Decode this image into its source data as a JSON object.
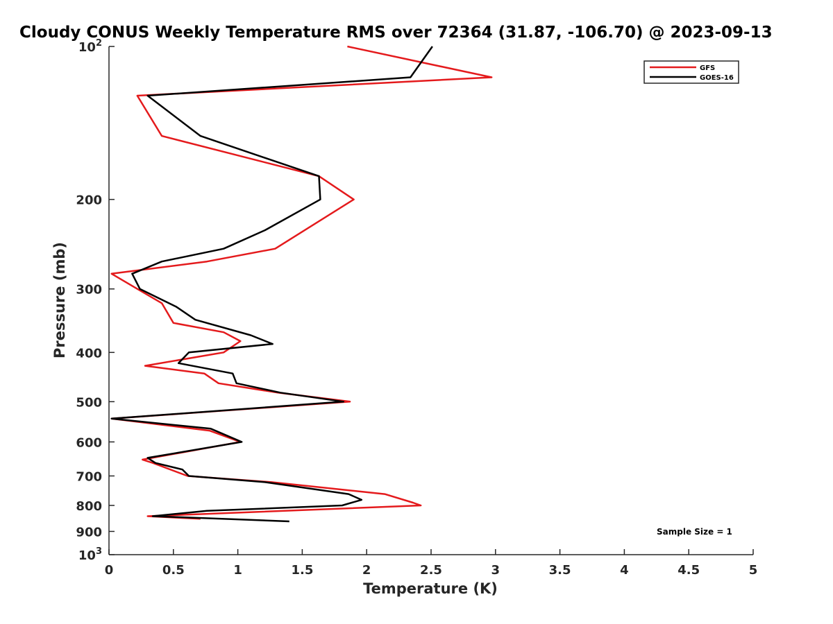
{
  "chart_data": {
    "type": "line",
    "title": "Cloudy CONUS Weekly Temperature RMS over 72364 (31.87, -106.70) @ 2023-09-13",
    "xlabel": "Temperature (K)",
    "ylabel": "Pressure (mb)",
    "xlim": [
      0,
      5
    ],
    "ylim": [
      100,
      1000
    ],
    "y_scale": "log",
    "y_reversed": true,
    "grid": false,
    "x_ticks": [
      {
        "value": 0,
        "label": "0"
      },
      {
        "value": 0.5,
        "label": "0.5"
      },
      {
        "value": 1,
        "label": "1"
      },
      {
        "value": 1.5,
        "label": "1.5"
      },
      {
        "value": 2,
        "label": "2"
      },
      {
        "value": 2.5,
        "label": "2.5"
      },
      {
        "value": 3,
        "label": "3"
      },
      {
        "value": 3.5,
        "label": "3.5"
      },
      {
        "value": 4,
        "label": "4"
      },
      {
        "value": 4.5,
        "label": "4.5"
      },
      {
        "value": 5,
        "label": "5"
      }
    ],
    "y_ticks": [
      {
        "value": 100,
        "label": "10",
        "sup": "2"
      },
      {
        "value": 200,
        "label": "200",
        "sup": ""
      },
      {
        "value": 300,
        "label": "300",
        "sup": ""
      },
      {
        "value": 400,
        "label": "400",
        "sup": ""
      },
      {
        "value": 500,
        "label": "500",
        "sup": ""
      },
      {
        "value": 600,
        "label": "600",
        "sup": ""
      },
      {
        "value": 700,
        "label": "700",
        "sup": ""
      },
      {
        "value": 800,
        "label": "800",
        "sup": ""
      },
      {
        "value": 900,
        "label": "900",
        "sup": ""
      },
      {
        "value": 1000,
        "label": "10",
        "sup": "3"
      }
    ],
    "legend_position": "top-right",
    "series": [
      {
        "name": "GFS",
        "color": "#e41a1c",
        "points": [
          [
            1.85,
            100
          ],
          [
            2.97,
            115
          ],
          [
            0.22,
            125
          ],
          [
            0.41,
            150
          ],
          [
            1.63,
            180
          ],
          [
            1.9,
            200
          ],
          [
            1.29,
            250
          ],
          [
            0.76,
            265
          ],
          [
            0.02,
            280
          ],
          [
            0.22,
            300
          ],
          [
            0.41,
            320
          ],
          [
            0.5,
            350
          ],
          [
            0.89,
            365
          ],
          [
            1.02,
            380
          ],
          [
            0.89,
            400
          ],
          [
            0.28,
            425
          ],
          [
            0.74,
            440
          ],
          [
            0.85,
            460
          ],
          [
            1.31,
            480
          ],
          [
            1.87,
            500
          ],
          [
            0.02,
            540
          ],
          [
            0.78,
            570
          ],
          [
            1.02,
            600
          ],
          [
            0.26,
            650
          ],
          [
            0.34,
            660
          ],
          [
            0.61,
            700
          ],
          [
            1.26,
            720
          ],
          [
            2.14,
            760
          ],
          [
            2.36,
            790
          ],
          [
            2.42,
            800
          ],
          [
            0.3,
            840
          ],
          [
            0.71,
            850
          ]
        ]
      },
      {
        "name": "GOES-16",
        "color": "#000000",
        "points": [
          [
            2.51,
            100
          ],
          [
            2.34,
            115
          ],
          [
            0.3,
            125
          ],
          [
            0.71,
            150
          ],
          [
            1.63,
            180
          ],
          [
            1.64,
            200
          ],
          [
            1.21,
            230
          ],
          [
            0.89,
            250
          ],
          [
            0.41,
            265
          ],
          [
            0.18,
            280
          ],
          [
            0.24,
            300
          ],
          [
            0.52,
            325
          ],
          [
            0.67,
            345
          ],
          [
            1.1,
            370
          ],
          [
            1.27,
            385
          ],
          [
            0.62,
            400
          ],
          [
            0.54,
            420
          ],
          [
            0.96,
            440
          ],
          [
            0.99,
            460
          ],
          [
            1.33,
            480
          ],
          [
            1.82,
            500
          ],
          [
            0.02,
            540
          ],
          [
            0.79,
            565
          ],
          [
            1.03,
            600
          ],
          [
            0.3,
            645
          ],
          [
            0.36,
            660
          ],
          [
            0.57,
            680
          ],
          [
            0.62,
            700
          ],
          [
            1.21,
            720
          ],
          [
            1.86,
            760
          ],
          [
            1.96,
            780
          ],
          [
            1.81,
            800
          ],
          [
            0.76,
            820
          ],
          [
            0.34,
            840
          ],
          [
            1.4,
            860
          ]
        ]
      }
    ],
    "annotations": [
      {
        "text": "Sample Size = 1",
        "position": "bottom-right"
      }
    ]
  }
}
